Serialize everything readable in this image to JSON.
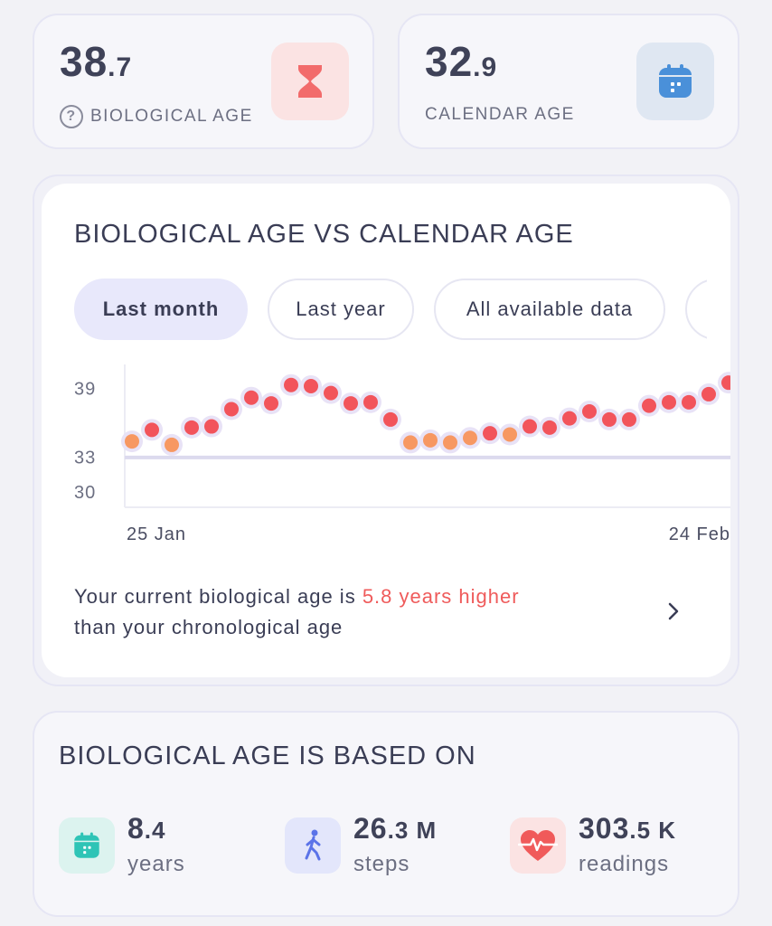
{
  "stats": {
    "biological": {
      "int": "38",
      "dec": ".7",
      "label": "BIOLOGICAL AGE",
      "help_icon": "question-circle-icon",
      "icon": "hourglass-icon",
      "color": "#f26b6b"
    },
    "calendar": {
      "int": "32",
      "dec": ".9",
      "label": "CALENDAR AGE",
      "icon": "calendar-icon",
      "color": "#4a90d9"
    }
  },
  "chart_card": {
    "title": "BIOLOGICAL AGE VS CALENDAR AGE",
    "filters": [
      {
        "label": "Last month",
        "active": true
      },
      {
        "label": "Last year",
        "active": false
      },
      {
        "label": "All available data",
        "active": false
      },
      {
        "label": "",
        "active": false
      }
    ],
    "summary_prefix": "Your current biological age is ",
    "summary_highlight": "5.8 years higher",
    "summary_suffix": "than your chronological age"
  },
  "chart_data": {
    "type": "scatter",
    "x_labels": [
      "25 Jan",
      "24 Feb"
    ],
    "y_ticks": [
      39,
      33,
      30
    ],
    "ylim": [
      29.2,
      40.2
    ],
    "calendar_age_line": 32.9,
    "series": [
      {
        "values": [
          34.3,
          35.3,
          34.0,
          35.5,
          35.6,
          37.1,
          38.1,
          37.6,
          39.2,
          39.1,
          38.5,
          37.6,
          37.7,
          36.2,
          34.2,
          34.4,
          34.2,
          34.6,
          35.0,
          34.9,
          35.6,
          35.5,
          36.3,
          36.9,
          36.2,
          36.2,
          37.4,
          37.7,
          37.7,
          38.4,
          39.4
        ],
        "point_colors_note": "orange when below 35, red otherwise",
        "colors": {
          "high": "#f2545b",
          "low": "#f79862",
          "halo": "#e8e2f6",
          "calendar_line": "#dcdaee"
        }
      }
    ]
  },
  "based_on": {
    "title": "BIOLOGICAL AGE IS BASED ON",
    "metrics": [
      {
        "int": "8",
        "dec": ".4",
        "unit": "",
        "label": "years",
        "icon": "calendar-icon",
        "bg": "#dcf3ef",
        "color": "#2ec4b6"
      },
      {
        "int": "26",
        "dec": ".3",
        "unit": " M",
        "label": "steps",
        "icon": "walking-icon",
        "bg": "#e3e6fb",
        "color": "#5b73e8"
      },
      {
        "int": "303",
        "dec": ".5",
        "unit": " K",
        "label": "readings",
        "icon": "heart-pulse-icon",
        "bg": "#fbe3e3",
        "color": "#f05a5a"
      }
    ]
  }
}
